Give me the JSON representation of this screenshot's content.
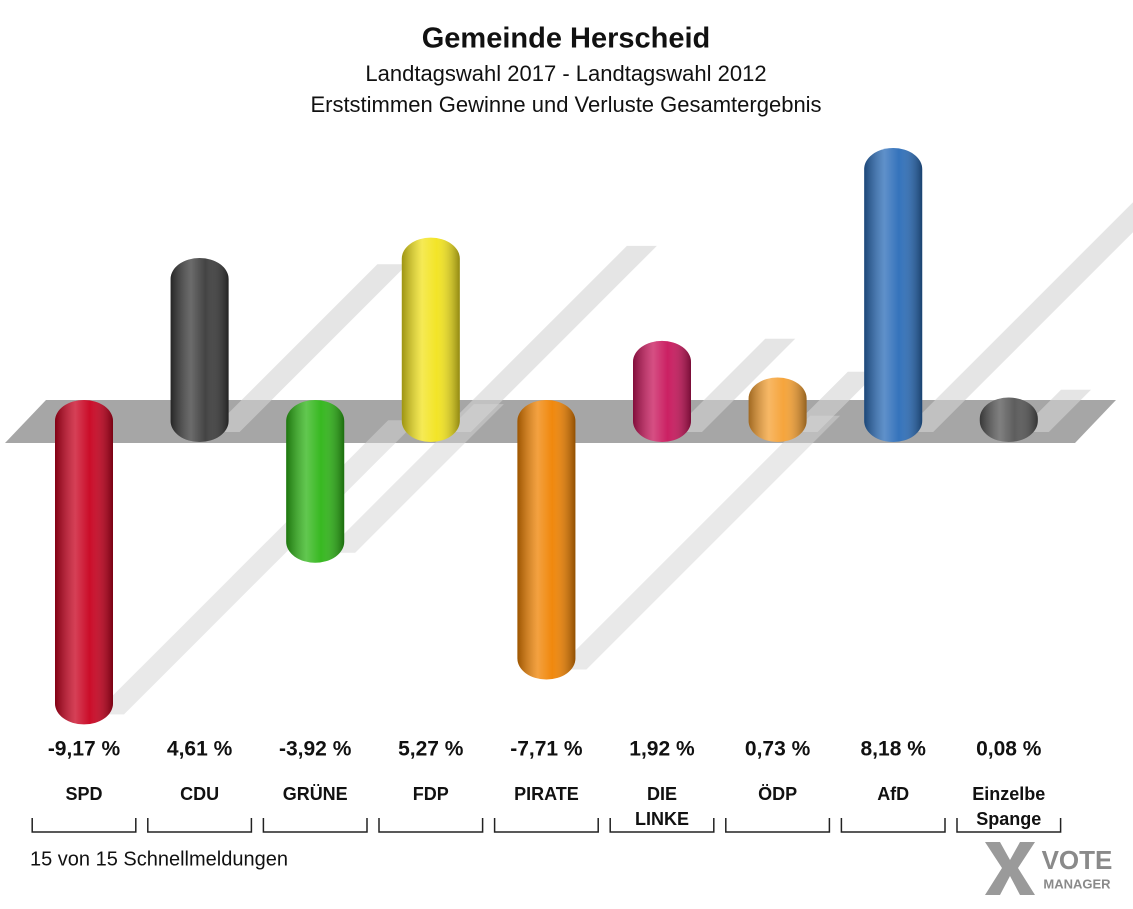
{
  "chart_data": {
    "type": "bar3d",
    "title": "Gemeinde Herscheid",
    "subtitle": "Landtagswahl 2017 - Landtagswahl 2012",
    "subtitle2": "Erststimmen Gewinne und Verluste Gesamtergebnis",
    "categories": [
      "SPD",
      "CDU",
      "GRÜNE",
      "FDP",
      "PIRATE",
      "DIE LINKE",
      "ÖDP",
      "AfD",
      "Einzelbe Spange"
    ],
    "values": [
      -9.17,
      4.61,
      -3.92,
      5.27,
      -7.71,
      1.92,
      0.73,
      8.18,
      0.08
    ],
    "value_labels": [
      "-9,17 %",
      "4,61 %",
      "-3,92 %",
      "5,27 %",
      "-7,71 %",
      "1,92 %",
      "0,73 %",
      "8,18 %",
      "0,08 %"
    ],
    "colors": [
      "#c8001e",
      "#3a3a3a",
      "#2db515",
      "#f2e31c",
      "#f08200",
      "#c8145a",
      "#f5a032",
      "#2a6cb8",
      "#555555"
    ],
    "footer": "15 von 15 Schnellmeldungen"
  },
  "logo": {
    "line1": "VOTE",
    "line2": "MANAGER"
  }
}
